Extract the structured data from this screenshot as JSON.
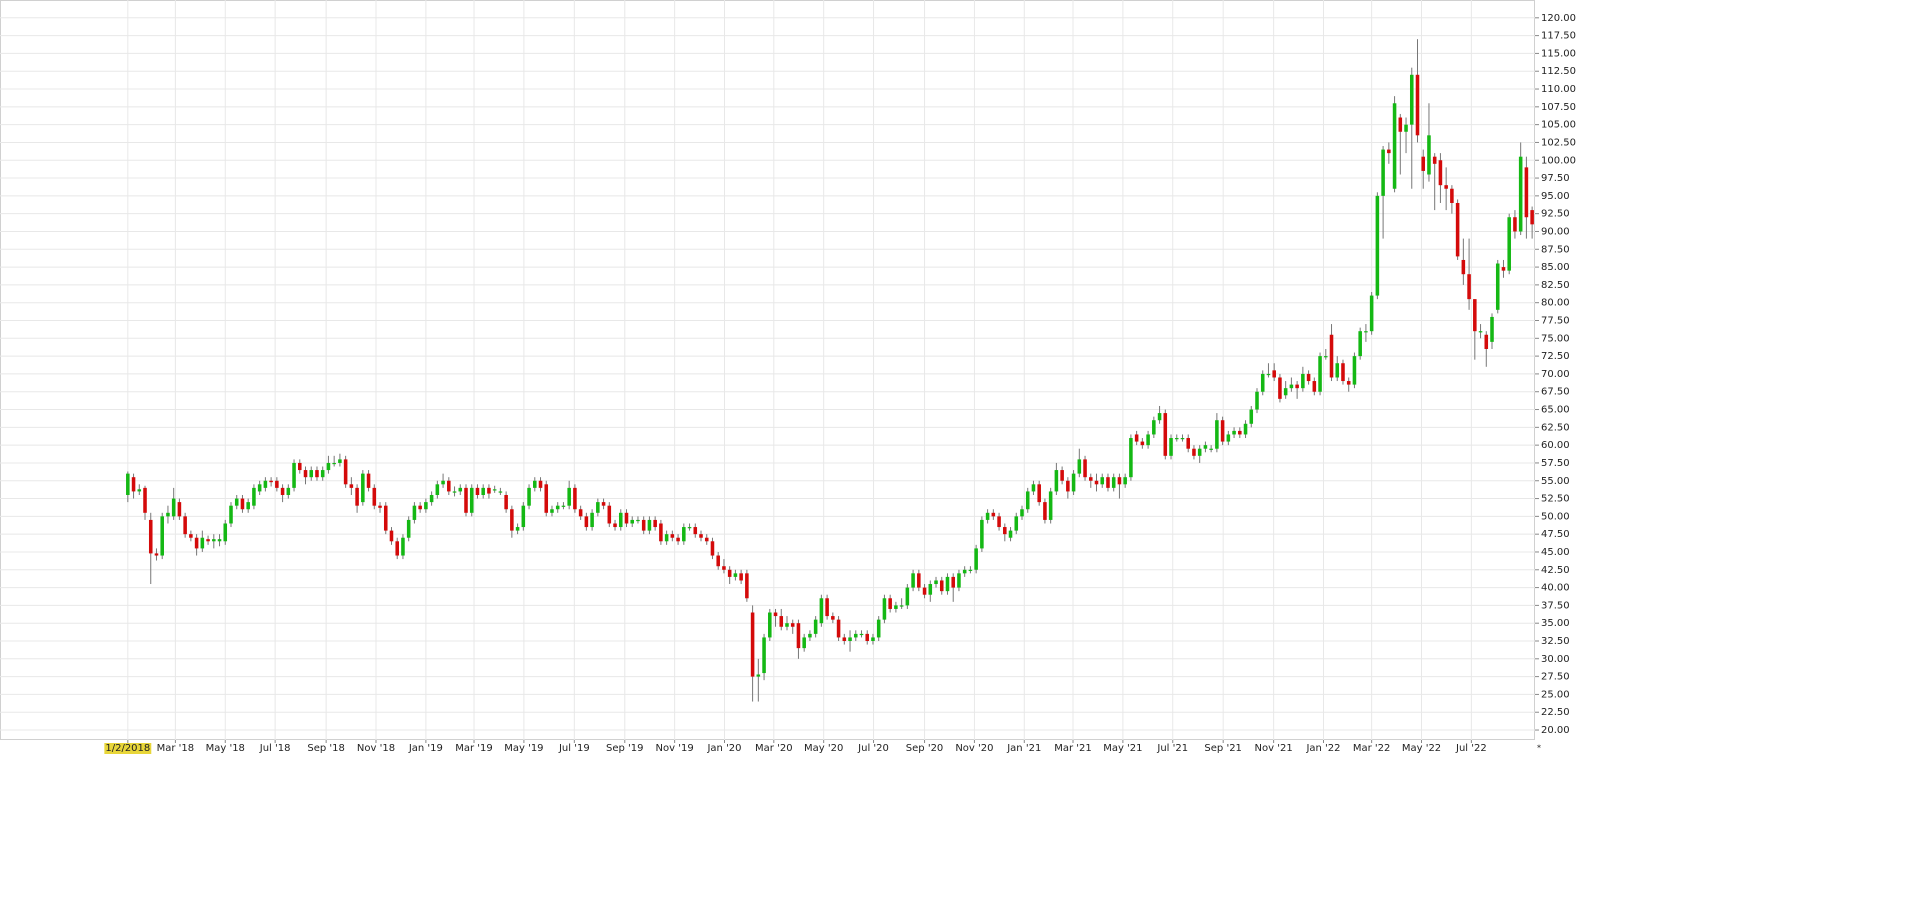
{
  "chart_data": {
    "type": "candlestick",
    "grid": true,
    "up_color": "#14b814",
    "down_color": "#d40a0a",
    "footnote": "*",
    "xlim": [
      -22.3,
      245.5
    ],
    "ylim": [
      18.6,
      122.5
    ],
    "xticks": [
      {
        "value": 0,
        "label": "1/2/2018"
      },
      {
        "value": 8.3,
        "label": "Mar '18"
      },
      {
        "value": 17,
        "label": "May '18"
      },
      {
        "value": 25.7,
        "label": "Jul '18"
      },
      {
        "value": 34.6,
        "label": "Sep '18"
      },
      {
        "value": 43.3,
        "label": "Nov '18"
      },
      {
        "value": 52,
        "label": "Jan '19"
      },
      {
        "value": 60.4,
        "label": "Mar '19"
      },
      {
        "value": 69.1,
        "label": "May '19"
      },
      {
        "value": 77.9,
        "label": "Jul '19"
      },
      {
        "value": 86.7,
        "label": "Sep '19"
      },
      {
        "value": 95.4,
        "label": "Nov '19"
      },
      {
        "value": 104.1,
        "label": "Jan '20"
      },
      {
        "value": 112.7,
        "label": "Mar '20"
      },
      {
        "value": 121.4,
        "label": "May '20"
      },
      {
        "value": 130.1,
        "label": "Jul '20"
      },
      {
        "value": 139,
        "label": "Sep '20"
      },
      {
        "value": 147.7,
        "label": "Nov '20"
      },
      {
        "value": 156.4,
        "label": "Jan '21"
      },
      {
        "value": 164.9,
        "label": "Mar '21"
      },
      {
        "value": 173.6,
        "label": "May '21"
      },
      {
        "value": 182.3,
        "label": "Jul '21"
      },
      {
        "value": 191.1,
        "label": "Sep '21"
      },
      {
        "value": 199.9,
        "label": "Nov '21"
      },
      {
        "value": 208.6,
        "label": "Jan '22"
      },
      {
        "value": 217,
        "label": "Mar '22"
      },
      {
        "value": 225.7,
        "label": "May '22"
      },
      {
        "value": 234.4,
        "label": "Jul '22"
      }
    ],
    "yticks": [
      {
        "value": 20,
        "label": "20.00"
      },
      {
        "value": 22.5,
        "label": "22.50"
      },
      {
        "value": 25,
        "label": "25.00"
      },
      {
        "value": 27.5,
        "label": "27.50"
      },
      {
        "value": 30,
        "label": "30.00"
      },
      {
        "value": 32.5,
        "label": "32.50"
      },
      {
        "value": 35,
        "label": "35.00"
      },
      {
        "value": 37.5,
        "label": "37.50"
      },
      {
        "value": 40,
        "label": "40.00"
      },
      {
        "value": 42.5,
        "label": "42.50"
      },
      {
        "value": 45,
        "label": "45.00"
      },
      {
        "value": 47.5,
        "label": "47.50"
      },
      {
        "value": 50,
        "label": "50.00"
      },
      {
        "value": 52.5,
        "label": "52.50"
      },
      {
        "value": 55,
        "label": "55.00"
      },
      {
        "value": 57.5,
        "label": "57.50"
      },
      {
        "value": 60,
        "label": "60.00"
      },
      {
        "value": 62.5,
        "label": "62.50"
      },
      {
        "value": 65,
        "label": "65.00"
      },
      {
        "value": 67.5,
        "label": "67.50"
      },
      {
        "value": 70,
        "label": "70.00"
      },
      {
        "value": 72.5,
        "label": "72.50"
      },
      {
        "value": 75,
        "label": "75.00"
      },
      {
        "value": 77.5,
        "label": "77.50"
      },
      {
        "value": 80,
        "label": "80.00"
      },
      {
        "value": 82.5,
        "label": "82.50"
      },
      {
        "value": 85,
        "label": "85.00"
      },
      {
        "value": 87.5,
        "label": "87.50"
      },
      {
        "value": 90,
        "label": "90.00"
      },
      {
        "value": 92.5,
        "label": "92.50"
      },
      {
        "value": 95,
        "label": "95.00"
      },
      {
        "value": 97.5,
        "label": "97.50"
      },
      {
        "value": 100,
        "label": "100.00"
      },
      {
        "value": 102.5,
        "label": "102.50"
      },
      {
        "value": 105,
        "label": "105.00"
      },
      {
        "value": 107.5,
        "label": "107.50"
      },
      {
        "value": 110,
        "label": "110.00"
      },
      {
        "value": 112.5,
        "label": "112.50"
      },
      {
        "value": 115,
        "label": "115.00"
      },
      {
        "value": 117.5,
        "label": "117.50"
      },
      {
        "value": 120,
        "label": "120.00"
      }
    ],
    "open": [
      53,
      55.5,
      53.5,
      54,
      49.5,
      44.8,
      44.5,
      50,
      50,
      52,
      50,
      47.5,
      47,
      45.5,
      46.8,
      46.5,
      46.5,
      46.5,
      49,
      51.5,
      52.5,
      51,
      51.5,
      53.5,
      54,
      55,
      55,
      54,
      53,
      54,
      57.5,
      56.5,
      55.5,
      56.5,
      55.5,
      56.5,
      57.5,
      57.5,
      58,
      54.5,
      54,
      52,
      56,
      54,
      51.5,
      51.5,
      48,
      46.5,
      44.5,
      47,
      49.5,
      51.5,
      51,
      52,
      53,
      54.5,
      55,
      53.5,
      53.5,
      54,
      50.5,
      54,
      53,
      54,
      53.8,
      53.5,
      53,
      51,
      48,
      48.5,
      51.5,
      54,
      55,
      54.5,
      50.5,
      51,
      51.5,
      51.5,
      54,
      51,
      50,
      48.5,
      50.5,
      52,
      51.5,
      49,
      48.5,
      50.5,
      49,
      49.5,
      49.5,
      48,
      49.5,
      49,
      46.5,
      47.5,
      47,
      46.5,
      48.5,
      48.5,
      47.5,
      47,
      46.5,
      44.5,
      43,
      42.5,
      41.5,
      42,
      42,
      36.5,
      27.5,
      28,
      33,
      36.5,
      36,
      34.5,
      35,
      35,
      31.5,
      33,
      33.5,
      35,
      38.5,
      36,
      35.5,
      33,
      32.5,
      33,
      33.5,
      33.5,
      32.5,
      33,
      35.5,
      38.5,
      37,
      37.5,
      37.5,
      40,
      42,
      40,
      39,
      40.5,
      41,
      39.5,
      41.5,
      40,
      42,
      42.5,
      42.5,
      45.5,
      49.5,
      50.5,
      50,
      48.5,
      47,
      48,
      50,
      51,
      53.5,
      54.5,
      52,
      49.5,
      53.5,
      56.5,
      55,
      53.5,
      56,
      58,
      55.5,
      55,
      54.5,
      55.5,
      54,
      55.5,
      54.5,
      55.5,
      61.5,
      60.5,
      60,
      61.5,
      63.5,
      64.5,
      58.5,
      61,
      61,
      61,
      59.5,
      58.5,
      59.5,
      59.5,
      59.5,
      63.5,
      60.5,
      61.5,
      62,
      61.5,
      63,
      65,
      67.5,
      70,
      70.5,
      69.5,
      67,
      68,
      68.5,
      68,
      70,
      69,
      67.5,
      72.5,
      75.5,
      69.5,
      71.5,
      69,
      68.5,
      72.5,
      76,
      76,
      81,
      95,
      101.5,
      96,
      106,
      104,
      105,
      112,
      100.5,
      98,
      100.5,
      100,
      96.5,
      96,
      94,
      86,
      84,
      80.5,
      76,
      75.5,
      74.5,
      79,
      85,
      84.5,
      92,
      90,
      99,
      93
    ],
    "high": [
      56.3,
      56,
      54.5,
      54.3,
      50.5,
      45.5,
      50.5,
      51.5,
      54,
      52.5,
      50.5,
      48,
      47.5,
      48,
      47.3,
      47.5,
      47.5,
      49.5,
      52,
      53,
      53,
      52.5,
      54.5,
      55,
      55.5,
      55.5,
      55.5,
      54.5,
      54.5,
      58,
      58,
      57,
      57,
      57,
      57,
      58.5,
      58.5,
      58.8,
      58.5,
      55.5,
      54.5,
      56.5,
      56.5,
      54.5,
      52,
      52,
      48.5,
      47,
      47.5,
      50,
      52,
      52,
      52.5,
      53.5,
      55,
      56,
      55.5,
      54.2,
      54.5,
      54.5,
      54.5,
      54.5,
      54.5,
      54.5,
      54.3,
      54,
      53.5,
      51.5,
      49,
      52,
      54.5,
      55.5,
      55.5,
      55,
      51.5,
      52,
      52,
      55,
      54.5,
      51.5,
      50.5,
      51,
      52.5,
      52.5,
      52,
      49.5,
      51,
      51,
      50,
      50,
      50,
      50,
      50,
      49.5,
      48,
      48,
      47.5,
      49,
      49,
      49,
      48,
      47.5,
      47,
      45,
      44,
      43,
      42.5,
      42.5,
      42.5,
      37.5,
      30,
      33.5,
      37,
      37,
      37,
      36,
      35.5,
      35.5,
      33.5,
      34,
      36,
      39,
      39,
      36.5,
      36,
      33.5,
      34,
      34,
      34,
      34,
      33.5,
      36,
      39,
      39,
      38,
      38.5,
      40.5,
      42.5,
      42.5,
      40.5,
      41,
      41.5,
      41.5,
      42,
      42,
      42.5,
      43,
      43,
      46,
      50,
      51,
      51,
      50.5,
      49,
      48.5,
      50.5,
      51.5,
      54,
      55,
      55,
      52.5,
      54,
      57.5,
      57,
      55.5,
      56.5,
      59.5,
      58.5,
      56,
      56,
      56,
      56,
      56,
      56,
      56,
      61.5,
      62,
      61,
      62,
      64,
      65.5,
      65,
      61.5,
      61.5,
      61.5,
      61.5,
      60,
      60,
      60.5,
      60,
      64.5,
      64,
      62,
      62.5,
      62.5,
      63.5,
      65.5,
      68,
      70.5,
      71.5,
      71.5,
      70,
      69,
      69.5,
      69,
      71,
      70.5,
      69.5,
      73,
      73.5,
      77,
      72.5,
      72,
      69.5,
      73,
      76.5,
      77,
      81.5,
      95.5,
      102,
      102.5,
      109,
      106.5,
      106,
      113,
      117,
      101.5,
      108,
      101,
      101,
      99,
      96.5,
      94.5,
      89,
      89,
      80.5,
      77,
      76,
      78.5,
      86,
      86,
      92.5,
      93,
      102.5,
      100.5,
      93.5
    ],
    "low": [
      52,
      52.5,
      53,
      49.5,
      40.5,
      43.8,
      44,
      49,
      49.5,
      49.5,
      47,
      46.5,
      44.5,
      45,
      46,
      45.5,
      45.8,
      46,
      48.5,
      51,
      50.5,
      50.5,
      51,
      53,
      53.5,
      54.2,
      53.5,
      52,
      52.5,
      53.5,
      56,
      54.5,
      55,
      55,
      55,
      56,
      57,
      57,
      54,
      53,
      50.5,
      51.5,
      53.5,
      51,
      50.5,
      47.5,
      46,
      44,
      44,
      46.5,
      49,
      50.5,
      50.5,
      51.5,
      52.5,
      54,
      53,
      52.8,
      53,
      50,
      50,
      52.5,
      52.5,
      52.5,
      53.3,
      53,
      50.5,
      47,
      47.5,
      48,
      51,
      53.5,
      53.5,
      50,
      50,
      50.5,
      51,
      51,
      50.5,
      49.5,
      48,
      48,
      50,
      51,
      48.5,
      48,
      48,
      48.5,
      48.5,
      49,
      47.5,
      47.5,
      48,
      46,
      46,
      46.5,
      46,
      46,
      48,
      47,
      46.5,
      46,
      44,
      42.5,
      42,
      40.5,
      41,
      40.5,
      38,
      24,
      24,
      27,
      32.5,
      34.5,
      34,
      34,
      33.5,
      30,
      31,
      32.5,
      33,
      34.5,
      35.5,
      35,
      32.5,
      32,
      31,
      32.5,
      33,
      32,
      32,
      32.5,
      35,
      36.5,
      36.5,
      37,
      37,
      39.5,
      39.5,
      38.5,
      38,
      40,
      39,
      39,
      38,
      39.5,
      41.5,
      42,
      42,
      45,
      49,
      49.5,
      48,
      46.5,
      46.5,
      47.5,
      49.5,
      50.5,
      53,
      51.5,
      49,
      49,
      53,
      54.5,
      52.5,
      53,
      55.5,
      55,
      54,
      53.5,
      54,
      53.5,
      53.5,
      52.5,
      54,
      55,
      60,
      59.5,
      59.5,
      61,
      63,
      58,
      58,
      60.5,
      60.5,
      59,
      58,
      57.5,
      59,
      59,
      59,
      60,
      60,
      61,
      61,
      61,
      62.5,
      64.5,
      67,
      69.5,
      69,
      66,
      66.5,
      67.5,
      66.5,
      67.5,
      68.5,
      67,
      67,
      72,
      69,
      69,
      68.5,
      67.5,
      68,
      72,
      74.5,
      75.5,
      80.5,
      89,
      99.5,
      95.5,
      98,
      101,
      96,
      102.5,
      96,
      97,
      93,
      94,
      93,
      92.5,
      86,
      82.5,
      79,
      72,
      75,
      71,
      73.5,
      78.5,
      83.5,
      84,
      89,
      89.5,
      89,
      89
    ],
    "close": [
      56,
      53.5,
      53.8,
      50.5,
      44.8,
      44.5,
      50,
      50.5,
      52.5,
      50,
      47.5,
      47,
      45.5,
      47,
      46.5,
      46.8,
      46.8,
      49,
      51.5,
      52.5,
      51,
      52,
      54,
      54.5,
      55,
      54.8,
      54,
      53,
      54,
      57.5,
      56.5,
      55.5,
      56.5,
      55.5,
      56.5,
      57.5,
      57.5,
      58,
      54.5,
      54,
      51.5,
      56,
      54,
      51.5,
      51.2,
      48,
      46.5,
      44.5,
      47,
      49.5,
      51.5,
      51,
      52,
      53,
      54.5,
      55,
      53.5,
      53.5,
      54,
      50.5,
      54,
      53,
      54,
      53.2,
      53.8,
      53.5,
      51,
      48,
      48.5,
      51.5,
      54,
      55,
      54,
      50.5,
      51,
      51.5,
      51.5,
      54,
      51,
      50,
      48.5,
      50.5,
      52,
      51.5,
      49,
      48.5,
      50.5,
      49,
      49.5,
      49.5,
      48,
      49.5,
      48.5,
      46.5,
      47.5,
      47,
      46.5,
      48.5,
      48.5,
      47.5,
      47,
      46.5,
      44.5,
      43,
      42.5,
      41.5,
      42,
      41,
      38.5,
      27.5,
      27.8,
      33,
      36.5,
      36,
      34.5,
      35,
      34.5,
      31.5,
      33,
      33.5,
      35.5,
      38.5,
      36,
      35.5,
      33,
      32.5,
      33,
      33.5,
      33.5,
      32.5,
      33,
      35.5,
      38.5,
      37,
      37.5,
      37.5,
      40,
      42,
      40,
      39,
      40.5,
      41,
      39.5,
      41.5,
      40,
      42,
      42.5,
      42.5,
      45.5,
      49.5,
      50.5,
      50,
      48.5,
      47.5,
      48,
      50,
      51,
      53.5,
      54.5,
      52,
      49.5,
      53.5,
      56.5,
      55,
      53.5,
      56,
      58,
      55.5,
      55,
      54.5,
      55.5,
      54,
      55.5,
      54.5,
      55.5,
      61,
      60.5,
      60,
      61.5,
      63.5,
      64.5,
      58.5,
      61,
      61,
      61,
      59.5,
      58.5,
      59.5,
      60,
      59.5,
      63.5,
      60.5,
      61.5,
      62,
      61.5,
      63,
      65,
      67.5,
      70,
      70,
      69.5,
      66.5,
      68,
      68.5,
      68,
      70,
      69,
      67.5,
      72.5,
      72.5,
      69.5,
      71.5,
      69,
      68.5,
      72.5,
      76,
      76,
      81,
      95,
      101.5,
      101,
      108,
      104,
      105,
      112,
      103.5,
      98.5,
      103.5,
      99.5,
      96.5,
      96,
      94,
      86.5,
      84,
      80.5,
      76,
      76,
      73.5,
      78,
      85.5,
      84.5,
      92,
      90,
      100.5,
      92,
      91
    ]
  }
}
